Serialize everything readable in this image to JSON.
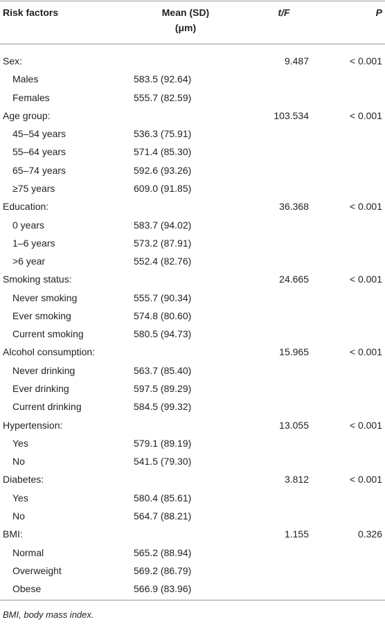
{
  "header": {
    "risk": "Risk factors",
    "mean": "Mean (SD)",
    "unit": "(μm)",
    "t": "t/F",
    "p": "P"
  },
  "groups": [
    {
      "label": "Sex:",
      "t": "9.487",
      "p": "< 0.001",
      "items": [
        {
          "label": "Males",
          "mean": "583.5 (92.64)"
        },
        {
          "label": "Females",
          "mean": "555.7 (82.59)"
        }
      ]
    },
    {
      "label": "Age group:",
      "t": "103.534",
      "p": "< 0.001",
      "items": [
        {
          "label": "45–54 years",
          "mean": "536.3 (75.91)"
        },
        {
          "label": "55–64 years",
          "mean": "571.4 (85.30)"
        },
        {
          "label": "65–74 years",
          "mean": "592.6 (93.26)"
        },
        {
          "label": "≥75 years",
          "mean": "609.0 (91.85)"
        }
      ]
    },
    {
      "label": "Education:",
      "t": "36.368",
      "p": "< 0.001",
      "items": [
        {
          "label": "0 years",
          "mean": "583.7 (94.02)"
        },
        {
          "label": "1–6 years",
          "mean": "573.2 (87.91)"
        },
        {
          "label": ">6 year",
          "mean": "552.4 (82.76)"
        }
      ]
    },
    {
      "label": "Smoking status:",
      "t": "24.665",
      "p": "< 0.001",
      "items": [
        {
          "label": "Never smoking",
          "mean": "555.7 (90.34)"
        },
        {
          "label": "Ever smoking",
          "mean": "574.8 (80.60)"
        },
        {
          "label": "Current smoking",
          "mean": "580.5 (94.73)"
        }
      ]
    },
    {
      "label": "Alcohol consumption:",
      "t": "15.965",
      "p": "< 0.001",
      "items": [
        {
          "label": "Never drinking",
          "mean": "563.7 (85.40)"
        },
        {
          "label": "Ever drinking",
          "mean": "597.5 (89.29)"
        },
        {
          "label": "Current drinking",
          "mean": "584.5 (99.32)"
        }
      ]
    },
    {
      "label": "Hypertension:",
      "t": "13.055",
      "p": "< 0.001",
      "items": [
        {
          "label": "Yes",
          "mean": "579.1 (89.19)"
        },
        {
          "label": "No",
          "mean": "541.5 (79.30)"
        }
      ]
    },
    {
      "label": "Diabetes:",
      "t": "3.812",
      "p": "< 0.001",
      "items": [
        {
          "label": "Yes",
          "mean": "580.4 (85.61)"
        },
        {
          "label": "No",
          "mean": "564.7 (88.21)"
        }
      ]
    },
    {
      "label": "BMI:",
      "t": "1.155",
      "p": "0.326",
      "items": [
        {
          "label": "Normal",
          "mean": "565.2 (88.94)"
        },
        {
          "label": "Overweight",
          "mean": "569.2 (86.79)"
        },
        {
          "label": "Obese",
          "mean": "566.9 (83.96)"
        }
      ]
    }
  ],
  "footnote": "BMI, body mass index."
}
